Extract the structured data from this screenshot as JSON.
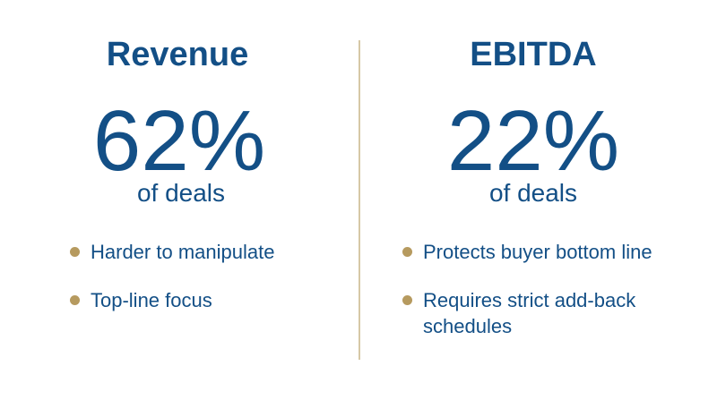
{
  "columns": [
    {
      "title": "Revenue",
      "stat": "62%",
      "caption": "of deals",
      "bullets": [
        "Harder to manipulate",
        "Top-line focus"
      ]
    },
    {
      "title": "EBITDA",
      "stat": "22%",
      "caption": "of deals",
      "bullets": [
        "Protects buyer bottom line",
        "Requires strict add-back schedules"
      ]
    }
  ]
}
